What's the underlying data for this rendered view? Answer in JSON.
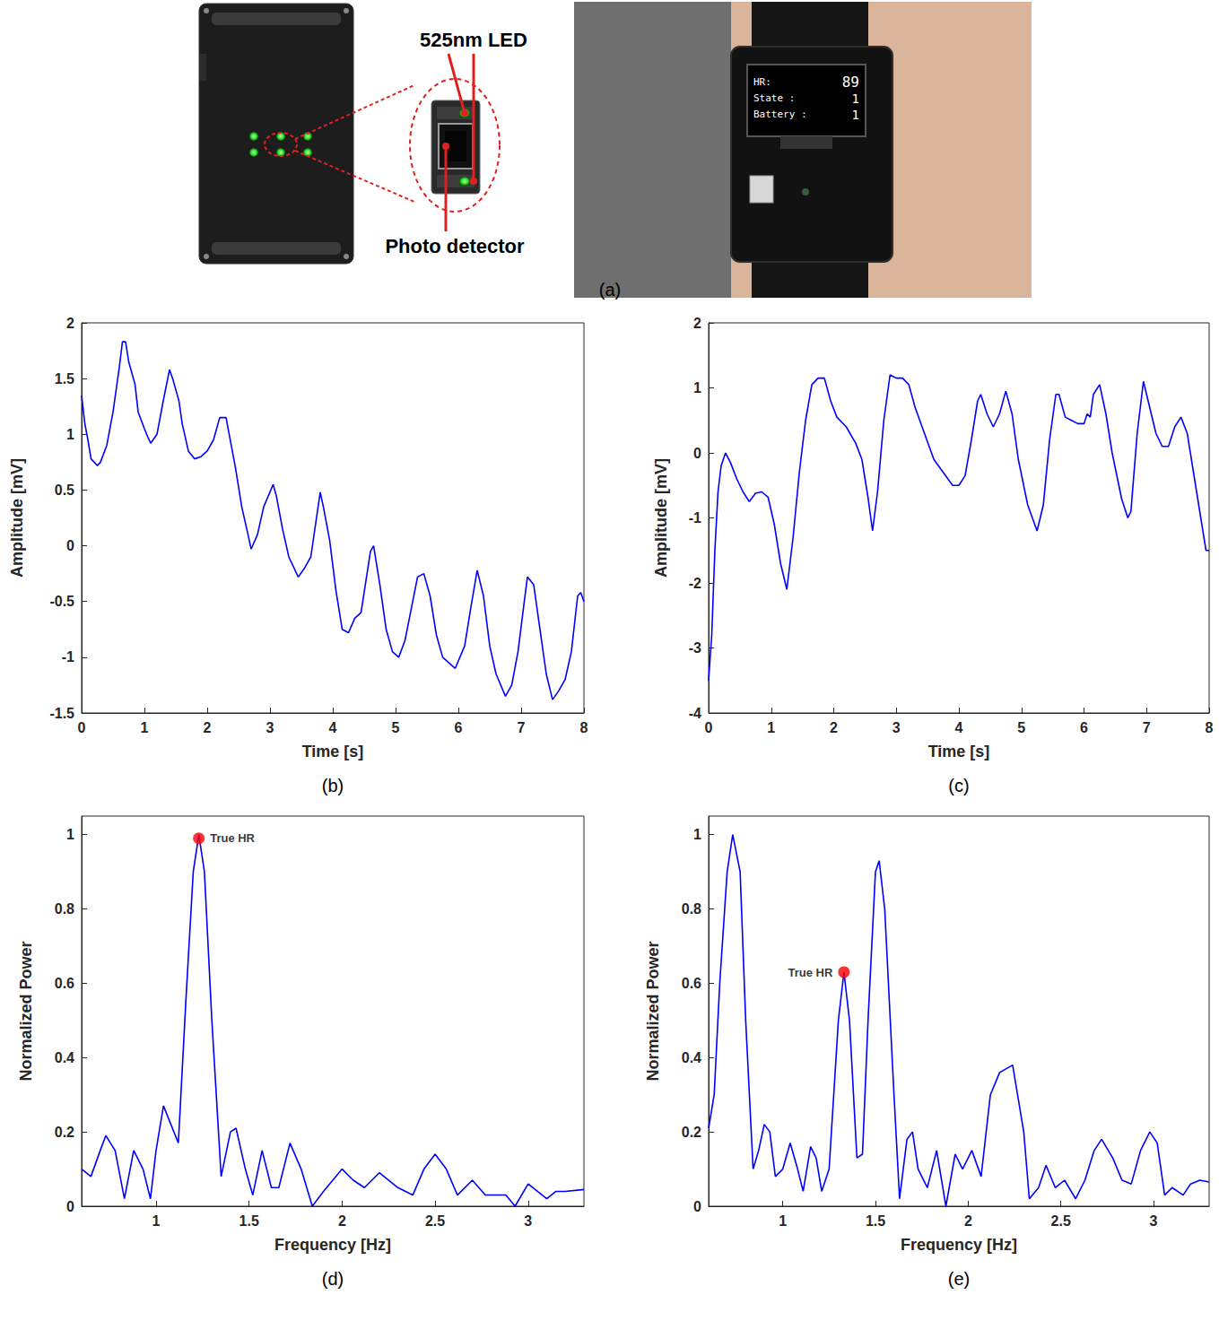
{
  "panel_a": {
    "caption": "(a)",
    "labels": {
      "led": "525nm LED",
      "detector": "Photo detector"
    },
    "watch_screen": [
      {
        "label": "HR:",
        "value": 89
      },
      {
        "label": "State :",
        "value": 1
      },
      {
        "label": "Battery :",
        "value": 1
      }
    ]
  },
  "chart_data": [
    {
      "type": "line",
      "caption": "(b)",
      "xlabel": "Time [s]",
      "ylabel": "Amplitude [mV]",
      "color": "#0000ff",
      "grid": false,
      "xlim": [
        0,
        8
      ],
      "xticks": [
        0,
        1,
        2,
        3,
        4,
        5,
        6,
        7,
        8
      ],
      "ylim": [
        -1.5,
        2
      ],
      "yticks": [
        -1.5,
        -1,
        -0.5,
        0,
        0.5,
        1,
        1.5,
        2
      ],
      "x": [
        0,
        0.05,
        0.1,
        0.15,
        0.25,
        0.3,
        0.4,
        0.5,
        0.6,
        0.65,
        0.7,
        0.75,
        0.85,
        0.9,
        1.0,
        1.05,
        1.1,
        1.2,
        1.3,
        1.4,
        1.45,
        1.55,
        1.6,
        1.7,
        1.8,
        1.9,
        2.0,
        2.1,
        2.2,
        2.3,
        2.35,
        2.45,
        2.55,
        2.65,
        2.7,
        2.8,
        2.9,
        3.05,
        3.1,
        3.2,
        3.3,
        3.45,
        3.55,
        3.65,
        3.8,
        3.85,
        3.95,
        4.05,
        4.15,
        4.25,
        4.35,
        4.45,
        4.6,
        4.65,
        4.75,
        4.85,
        4.95,
        5.05,
        5.15,
        5.35,
        5.45,
        5.55,
        5.65,
        5.75,
        5.85,
        5.95,
        6.1,
        6.2,
        6.3,
        6.4,
        6.5,
        6.6,
        6.75,
        6.85,
        6.95,
        7.05,
        7.1,
        7.2,
        7.3,
        7.4,
        7.5,
        7.6,
        7.7,
        7.8,
        7.9,
        7.95,
        8.0
      ],
      "values": [
        1.35,
        1.1,
        0.95,
        0.78,
        0.72,
        0.75,
        0.9,
        1.2,
        1.6,
        1.83,
        1.83,
        1.65,
        1.45,
        1.2,
        1.05,
        0.98,
        0.92,
        1.0,
        1.3,
        1.58,
        1.5,
        1.3,
        1.1,
        0.85,
        0.78,
        0.8,
        0.85,
        0.95,
        1.15,
        1.15,
        1.0,
        0.7,
        0.35,
        0.1,
        -0.03,
        0.1,
        0.35,
        0.55,
        0.45,
        0.15,
        -0.1,
        -0.28,
        -0.2,
        -0.1,
        0.48,
        0.35,
        0.05,
        -0.4,
        -0.75,
        -0.78,
        -0.65,
        -0.6,
        -0.05,
        0.0,
        -0.35,
        -0.75,
        -0.95,
        -1.0,
        -0.85,
        -0.28,
        -0.25,
        -0.45,
        -0.8,
        -1.0,
        -1.05,
        -1.1,
        -0.9,
        -0.55,
        -0.22,
        -0.45,
        -0.9,
        -1.15,
        -1.35,
        -1.25,
        -0.95,
        -0.5,
        -0.28,
        -0.35,
        -0.75,
        -1.15,
        -1.38,
        -1.3,
        -1.2,
        -0.95,
        -0.45,
        -0.42,
        -0.5
      ]
    },
    {
      "type": "line",
      "caption": "(c)",
      "xlabel": "Time [s]",
      "ylabel": "Amplitude [mV]",
      "color": "#0000ff",
      "grid": false,
      "xlim": [
        0,
        8
      ],
      "xticks": [
        0,
        1,
        2,
        3,
        4,
        5,
        6,
        7,
        8
      ],
      "ylim": [
        -4,
        2
      ],
      "yticks": [
        -4,
        -3,
        -2,
        -1,
        0,
        1,
        2
      ],
      "x": [
        0,
        0.05,
        0.1,
        0.15,
        0.2,
        0.27,
        0.35,
        0.45,
        0.55,
        0.65,
        0.75,
        0.85,
        0.95,
        1.05,
        1.15,
        1.25,
        1.35,
        1.45,
        1.55,
        1.65,
        1.75,
        1.85,
        1.95,
        2.05,
        2.2,
        2.35,
        2.45,
        2.55,
        2.62,
        2.7,
        2.8,
        2.9,
        3.0,
        3.1,
        3.2,
        3.3,
        3.45,
        3.6,
        3.75,
        3.9,
        4.0,
        4.1,
        4.2,
        4.3,
        4.35,
        4.45,
        4.55,
        4.65,
        4.75,
        4.85,
        4.95,
        5.1,
        5.25,
        5.35,
        5.45,
        5.55,
        5.6,
        5.7,
        5.8,
        5.9,
        6.0,
        6.05,
        6.1,
        6.15,
        6.25,
        6.35,
        6.45,
        6.6,
        6.7,
        6.75,
        6.85,
        6.95,
        7.05,
        7.15,
        7.25,
        7.35,
        7.45,
        7.55,
        7.65,
        7.75,
        7.85,
        7.95,
        8.0
      ],
      "values": [
        -3.5,
        -2.8,
        -1.5,
        -0.6,
        -0.2,
        0.0,
        -0.15,
        -0.4,
        -0.6,
        -0.75,
        -0.62,
        -0.6,
        -0.68,
        -1.1,
        -1.7,
        -2.1,
        -1.3,
        -0.3,
        0.5,
        1.05,
        1.15,
        1.15,
        0.8,
        0.55,
        0.4,
        0.15,
        -0.1,
        -0.7,
        -1.2,
        -0.6,
        0.5,
        1.2,
        1.15,
        1.15,
        1.05,
        0.7,
        0.3,
        -0.1,
        -0.3,
        -0.5,
        -0.5,
        -0.35,
        0.2,
        0.8,
        0.9,
        0.6,
        0.4,
        0.6,
        0.95,
        0.6,
        -0.1,
        -0.8,
        -1.2,
        -0.8,
        0.2,
        0.9,
        0.9,
        0.55,
        0.5,
        0.45,
        0.45,
        0.6,
        0.55,
        0.9,
        1.05,
        0.6,
        0.0,
        -0.7,
        -1.0,
        -0.9,
        0.3,
        1.1,
        0.7,
        0.3,
        0.1,
        0.1,
        0.4,
        0.55,
        0.3,
        -0.3,
        -0.9,
        -1.5,
        -1.5
      ]
    },
    {
      "type": "line",
      "caption": "(d)",
      "xlabel": "Frequency [Hz]",
      "ylabel": "Normalized Power",
      "color": "#0000ff",
      "grid": false,
      "xlim": [
        0.6,
        3.3
      ],
      "xticks": [
        1,
        1.5,
        2,
        2.5,
        3
      ],
      "ylim": [
        0,
        1.05
      ],
      "yticks": [
        0,
        0.2,
        0.4,
        0.6,
        0.8,
        1
      ],
      "x": [
        0.6,
        0.65,
        0.7,
        0.73,
        0.78,
        0.83,
        0.88,
        0.93,
        0.97,
        1.0,
        1.04,
        1.08,
        1.12,
        1.16,
        1.2,
        1.23,
        1.26,
        1.3,
        1.35,
        1.4,
        1.43,
        1.48,
        1.52,
        1.57,
        1.62,
        1.66,
        1.72,
        1.78,
        1.84,
        1.9,
        1.95,
        2.0,
        2.06,
        2.12,
        2.2,
        2.3,
        2.38,
        2.44,
        2.5,
        2.56,
        2.62,
        2.7,
        2.77,
        2.83,
        2.88,
        2.93,
        3.0,
        3.05,
        3.1,
        3.15,
        3.2,
        3.3
      ],
      "values": [
        0.1,
        0.08,
        0.15,
        0.19,
        0.15,
        0.02,
        0.15,
        0.1,
        0.02,
        0.15,
        0.27,
        0.22,
        0.17,
        0.55,
        0.9,
        1.0,
        0.9,
        0.5,
        0.08,
        0.2,
        0.21,
        0.1,
        0.03,
        0.15,
        0.05,
        0.05,
        0.17,
        0.1,
        0.0,
        0.04,
        0.07,
        0.1,
        0.07,
        0.05,
        0.09,
        0.05,
        0.03,
        0.1,
        0.14,
        0.1,
        0.03,
        0.07,
        0.03,
        0.03,
        0.03,
        0.0,
        0.06,
        0.04,
        0.02,
        0.04,
        0.04,
        0.045
      ],
      "annotations": [
        {
          "text": "True HR",
          "x": 1.23,
          "y": 0.99
        }
      ]
    },
    {
      "type": "line",
      "caption": "(e)",
      "xlabel": "Frequency [Hz]",
      "ylabel": "Normalized Power",
      "color": "#0000ff",
      "grid": false,
      "xlim": [
        0.6,
        3.3
      ],
      "xticks": [
        1,
        1.5,
        2,
        2.5,
        3
      ],
      "ylim": [
        0,
        1.05
      ],
      "yticks": [
        0,
        0.2,
        0.4,
        0.6,
        0.8,
        1
      ],
      "x": [
        0.6,
        0.63,
        0.66,
        0.7,
        0.73,
        0.77,
        0.8,
        0.84,
        0.87,
        0.9,
        0.93,
        0.96,
        1.0,
        1.04,
        1.08,
        1.11,
        1.15,
        1.18,
        1.21,
        1.25,
        1.3,
        1.33,
        1.36,
        1.4,
        1.43,
        1.46,
        1.5,
        1.52,
        1.55,
        1.6,
        1.63,
        1.67,
        1.7,
        1.73,
        1.78,
        1.83,
        1.88,
        1.93,
        1.97,
        2.02,
        2.07,
        2.12,
        2.17,
        2.24,
        2.3,
        2.33,
        2.38,
        2.42,
        2.47,
        2.52,
        2.58,
        2.63,
        2.68,
        2.72,
        2.78,
        2.83,
        2.88,
        2.93,
        2.98,
        3.02,
        3.06,
        3.1,
        3.16,
        3.2,
        3.25,
        3.3
      ],
      "values": [
        0.21,
        0.3,
        0.6,
        0.9,
        1.0,
        0.9,
        0.5,
        0.1,
        0.15,
        0.22,
        0.2,
        0.08,
        0.1,
        0.17,
        0.1,
        0.04,
        0.16,
        0.13,
        0.04,
        0.1,
        0.5,
        0.63,
        0.5,
        0.13,
        0.14,
        0.5,
        0.9,
        0.93,
        0.8,
        0.3,
        0.02,
        0.18,
        0.2,
        0.1,
        0.05,
        0.15,
        0.0,
        0.14,
        0.1,
        0.15,
        0.08,
        0.3,
        0.36,
        0.38,
        0.2,
        0.02,
        0.05,
        0.11,
        0.05,
        0.07,
        0.02,
        0.07,
        0.15,
        0.18,
        0.13,
        0.07,
        0.06,
        0.15,
        0.2,
        0.17,
        0.03,
        0.05,
        0.03,
        0.06,
        0.07,
        0.065
      ],
      "annotations": [
        {
          "text": "True HR",
          "x": 1.33,
          "y": 0.63
        }
      ]
    }
  ]
}
